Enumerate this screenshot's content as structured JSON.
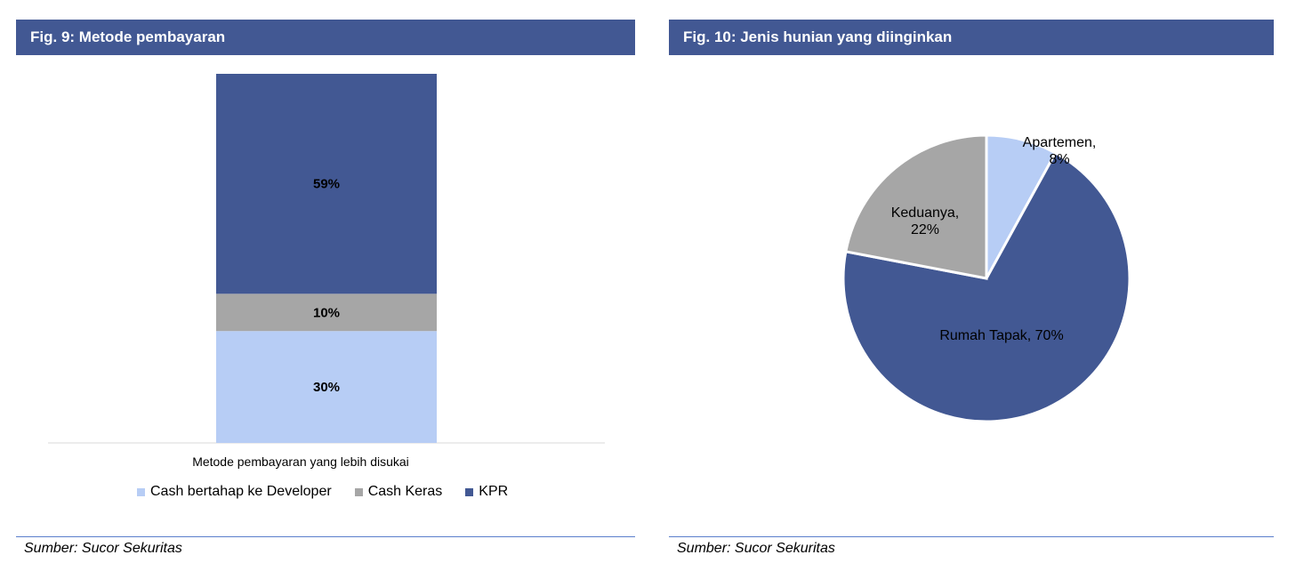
{
  "left_panel": {
    "title": "Fig. 9: Metode pembayaran",
    "source": "Sumber: Sucor Sekuritas"
  },
  "right_panel": {
    "title": "Fig. 10: Jenis hunian yang diinginkan",
    "source": "Sumber: Sucor Sekuritas"
  },
  "chart_data": [
    {
      "type": "bar",
      "stacked": true,
      "categories": [
        "Metode pembayaran yang lebih disukai"
      ],
      "xlabel": "Metode pembayaran yang lebih disukai",
      "series": [
        {
          "name": "Cash bertahap ke Developer",
          "values": [
            30
          ],
          "label": "30%",
          "color": "#b7cdf5"
        },
        {
          "name": "Cash Keras",
          "values": [
            10
          ],
          "label": "10%",
          "color": "#a6a6a6"
        },
        {
          "name": "KPR",
          "values": [
            59
          ],
          "label": "59%",
          "color": "#425893"
        }
      ],
      "legend_position": "bottom"
    },
    {
      "type": "pie",
      "slices": [
        {
          "label": "Apartemen,\n8%",
          "value": 8,
          "color": "#b7cdf5"
        },
        {
          "label": "Rumah Tapak, 70%",
          "value": 70,
          "color": "#425893"
        },
        {
          "label": "Keduanya,\n22%",
          "value": 22,
          "color": "#a6a6a6"
        }
      ]
    }
  ]
}
